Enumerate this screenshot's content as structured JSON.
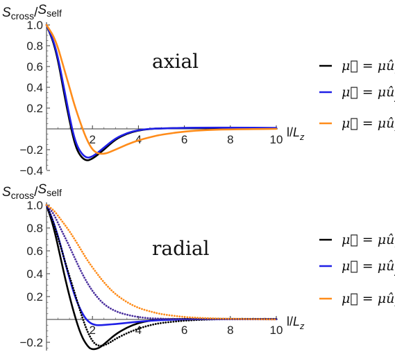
{
  "chart_data": [
    {
      "type": "line",
      "annotation": "axial",
      "ylabel": {
        "main": "S",
        "sub1": "cross",
        "slash": "/",
        "main2": "S",
        "sub2": "self"
      },
      "xlabel": {
        "main": "l/",
        "var": "L",
        "sub": "z"
      },
      "xlim": [
        0,
        10
      ],
      "ylim": [
        -0.42,
        1.0
      ],
      "xticks": [
        "2",
        "4",
        "6",
        "8",
        "10"
      ],
      "xtick_values": [
        2,
        4,
        6,
        8,
        10
      ],
      "yticks": [
        "1.0",
        "0.8",
        "0.6",
        "0.4",
        "0.2",
        "−0.2",
        "−0.4"
      ],
      "ytick_values": [
        1.0,
        0.8,
        0.6,
        0.4,
        0.2,
        -0.2,
        -0.4
      ],
      "legend": [
        {
          "text": "μ⃗ = μû",
          "sub": "x",
          "color": "#000000"
        },
        {
          "text": "μ⃗ = μû",
          "sub": "y",
          "color": "#1f1fe6"
        },
        {
          "text": "μ⃗ = μû",
          "sub": "z",
          "color": "#ff8c1a"
        }
      ],
      "series": [
        {
          "color": "#000000",
          "dotted": false,
          "x": [
            0,
            0.4,
            0.8,
            1.0,
            1.2,
            1.4,
            1.7,
            2.0,
            2.5,
            3.0,
            3.5,
            4.0,
            4.5,
            5,
            6,
            7,
            8,
            10
          ],
          "y": [
            1.0,
            0.78,
            0.3,
            0.08,
            -0.12,
            -0.24,
            -0.31,
            -0.29,
            -0.2,
            -0.1,
            -0.045,
            -0.015,
            0.0,
            0.005,
            0.01,
            0.01,
            0.008,
            0.005
          ]
        },
        {
          "color": "#1f1fe6",
          "dotted": false,
          "x": [
            0,
            0.4,
            0.8,
            1.0,
            1.2,
            1.4,
            1.7,
            2.0,
            2.5,
            3.0,
            3.5,
            4.0,
            4.5,
            5,
            6,
            7,
            8,
            10
          ],
          "y": [
            1.0,
            0.8,
            0.35,
            0.12,
            -0.08,
            -0.2,
            -0.28,
            -0.27,
            -0.18,
            -0.09,
            -0.04,
            -0.01,
            0.0,
            0.005,
            0.01,
            0.012,
            0.012,
            0.01
          ]
        },
        {
          "color": "#ff8c1a",
          "dotted": false,
          "x": [
            0,
            0.4,
            0.8,
            1.0,
            1.2,
            1.5,
            1.8,
            2.1,
            2.5,
            3.0,
            3.5,
            4.0,
            4.5,
            5,
            6,
            7,
            8,
            10
          ],
          "y": [
            1.0,
            0.86,
            0.55,
            0.4,
            0.24,
            0.04,
            -0.13,
            -0.23,
            -0.245,
            -0.2,
            -0.15,
            -0.11,
            -0.08,
            -0.055,
            -0.025,
            -0.01,
            -0.004,
            0.0
          ]
        }
      ]
    },
    {
      "type": "line",
      "annotation": "radial",
      "ylabel": {
        "main": "S",
        "sub1": "cross",
        "slash": "/",
        "main2": "S",
        "sub2": "self"
      },
      "xlabel": {
        "main": "l/",
        "var": "L",
        "sub": "z"
      },
      "xlim": [
        0,
        10
      ],
      "ylim": [
        -0.27,
        1.0
      ],
      "xticks": [
        "2",
        "4",
        "6",
        "8",
        "10"
      ],
      "xtick_values": [
        2,
        4,
        6,
        8,
        10
      ],
      "yticks": [
        "1.0",
        "0.8",
        "0.6",
        "0.4",
        "0.2",
        "−0.2"
      ],
      "ytick_values": [
        1.0,
        0.8,
        0.6,
        0.4,
        0.2,
        -0.2
      ],
      "legend": [
        {
          "text": "μ⃗ = μû",
          "sub": "x",
          "color": "#000000"
        },
        {
          "text": "μ⃗ = μû",
          "sub": "y",
          "color": "#1f1fe6"
        },
        {
          "text": "μ⃗ = μû",
          "sub": "z",
          "color": "#ff8c1a"
        }
      ],
      "series": [
        {
          "color": "#000000",
          "dotted": false,
          "x": [
            0,
            0.3,
            0.6,
            0.9,
            1.2,
            1.5,
            1.8,
            2.0,
            2.3,
            2.6,
            3.0,
            3.5,
            4.0,
            4.5,
            5,
            6,
            8,
            10
          ],
          "y": [
            1.0,
            0.82,
            0.55,
            0.28,
            0.05,
            -0.14,
            -0.24,
            -0.265,
            -0.25,
            -0.2,
            -0.13,
            -0.07,
            -0.03,
            -0.01,
            0.0,
            0.005,
            0.005,
            0.003
          ]
        },
        {
          "color": "#1f1fe6",
          "dotted": false,
          "x": [
            0,
            0.3,
            0.6,
            0.9,
            1.2,
            1.5,
            1.8,
            2.1,
            2.4,
            2.7,
            3.0,
            3.5,
            4.0,
            4.5,
            5,
            6,
            8,
            10
          ],
          "y": [
            1.0,
            0.86,
            0.66,
            0.43,
            0.22,
            0.07,
            -0.02,
            -0.05,
            -0.05,
            -0.045,
            -0.04,
            -0.03,
            -0.02,
            -0.012,
            -0.006,
            0.0,
            0.003,
            0.003
          ]
        },
        {
          "color": "#000000",
          "dotted": true,
          "x": [
            0,
            0.3,
            0.6,
            0.9,
            1.2,
            1.5,
            1.8,
            2.1,
            2.4,
            2.7,
            3.0,
            3.5,
            4.0,
            4.5,
            5,
            6,
            7,
            8,
            10
          ],
          "y": [
            1.0,
            0.85,
            0.65,
            0.44,
            0.25,
            0.05,
            -0.12,
            -0.22,
            -0.235,
            -0.21,
            -0.17,
            -0.12,
            -0.08,
            -0.05,
            -0.03,
            -0.01,
            0.0,
            0.004,
            0.004
          ]
        },
        {
          "color": "#4a2f9e",
          "dotted": true,
          "x": [
            0,
            0.3,
            0.6,
            0.9,
            1.2,
            1.5,
            1.8,
            2.1,
            2.5,
            3.0,
            3.5,
            4.0,
            4.5,
            5,
            6,
            7,
            8,
            10
          ],
          "y": [
            1.0,
            0.93,
            0.8,
            0.68,
            0.55,
            0.42,
            0.31,
            0.22,
            0.13,
            0.07,
            0.04,
            0.02,
            0.01,
            0.006,
            0.003,
            0.002,
            0.002,
            0.002
          ]
        },
        {
          "color": "#ff8c1a",
          "dotted": true,
          "x": [
            0,
            0.3,
            0.6,
            0.9,
            1.2,
            1.5,
            1.8,
            2.2,
            2.6,
            3.0,
            3.5,
            4.0,
            4.5,
            5,
            6,
            7,
            8,
            10
          ],
          "y": [
            1.0,
            0.96,
            0.88,
            0.8,
            0.71,
            0.61,
            0.51,
            0.4,
            0.3,
            0.22,
            0.15,
            0.1,
            0.07,
            0.045,
            0.02,
            0.01,
            0.005,
            0.0
          ]
        }
      ]
    }
  ]
}
